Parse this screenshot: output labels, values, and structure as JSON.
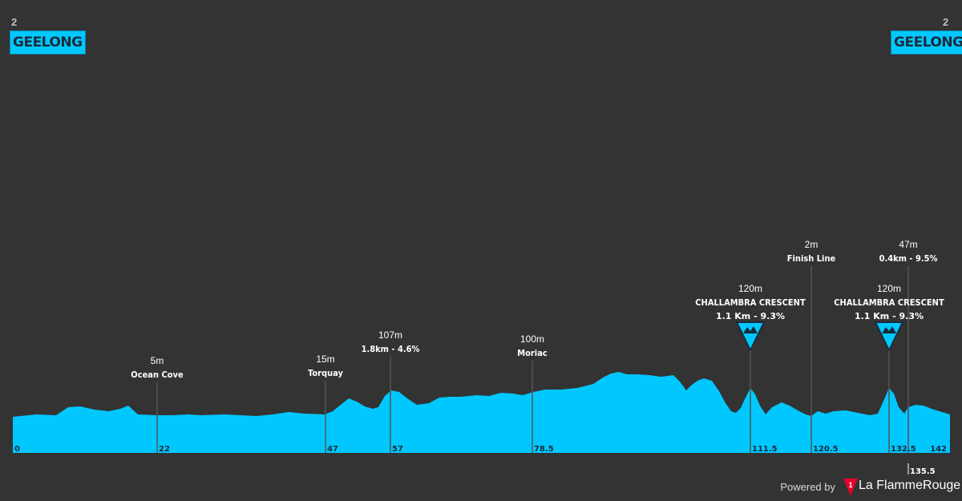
{
  "stage_number": "2",
  "start_city": "GEELONG",
  "finish_city": "GEELONG",
  "footer": {
    "powered_by": "Powered by",
    "brand": "La FlammeRouge",
    "logo_glyph": "1"
  },
  "colors": {
    "background": "#333333",
    "profile": "#00c8ff",
    "text": "#ffffff",
    "accent": "#e4002b"
  },
  "distance_marks": [
    {
      "label": "0",
      "km": 0
    },
    {
      "label": "22",
      "km": 22
    },
    {
      "label": "47",
      "km": 47
    },
    {
      "label": "57",
      "km": 57
    },
    {
      "label": "78.5",
      "km": 78.5
    },
    {
      "label": "111.5",
      "km": 111.5
    },
    {
      "label": "120.5",
      "km": 120.5
    },
    {
      "label": "132.5",
      "km": 132.5
    },
    {
      "label": "142",
      "km": 142
    }
  ],
  "extra_mark": {
    "label": "135.5",
    "km": 135.5
  },
  "waypoints": [
    {
      "km": 22,
      "altitude": "5m",
      "name": "Ocean Cove"
    },
    {
      "km": 47,
      "altitude": "15m",
      "name": "Torquay"
    },
    {
      "km": 57,
      "altitude": "107m",
      "name": "1.8km - 4.6%"
    },
    {
      "km": 78.5,
      "altitude": "100m",
      "name": "Moriac"
    },
    {
      "km": 111.5,
      "altitude": "120m",
      "name": "CHALLAMBRA CRESCENT",
      "detail": "1.1 Km - 9.3%",
      "kom": true
    },
    {
      "km": 120.5,
      "altitude": "2m",
      "name": "Finish Line"
    },
    {
      "km": 132.5,
      "altitude": "120m",
      "name": "CHALLAMBRA CRESCENT",
      "detail": "1.1 Km - 9.3%",
      "kom": true
    },
    {
      "km": 135.5,
      "altitude": "47m",
      "name": "0.4km - 9.5%"
    }
  ]
}
